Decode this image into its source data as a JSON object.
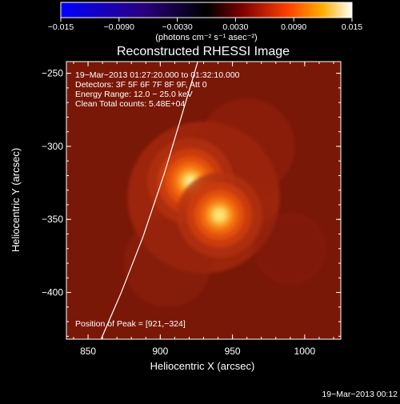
{
  "chart_data": {
    "type": "heatmap",
    "title": "Reconstructed RHESSI Image",
    "xlabel": "Heliocentric X (arcsec)",
    "ylabel": "Heliocentric Y (arcsec)",
    "xlim": [
      835,
      1025
    ],
    "ylim": [
      -432,
      -242
    ],
    "x_ticks": [
      {
        "value": 850,
        "label": "850"
      },
      {
        "value": 900,
        "label": "900"
      },
      {
        "value": 950,
        "label": "950"
      },
      {
        "value": 1000,
        "label": "1000"
      }
    ],
    "y_ticks": [
      {
        "value": -250,
        "label": "−250"
      },
      {
        "value": -300,
        "label": "−300"
      },
      {
        "value": -350,
        "label": "−350"
      },
      {
        "value": -400,
        "label": "−400"
      }
    ],
    "colorbar": {
      "min": -0.015,
      "max": 0.015,
      "ticks": [
        {
          "value": -0.015,
          "label": "−0.015"
        },
        {
          "value": -0.009,
          "label": "−0.0090"
        },
        {
          "value": -0.003,
          "label": "−0.0030"
        },
        {
          "value": 0.003,
          "label": "0.0030"
        },
        {
          "value": 0.009,
          "label": "0.0090"
        },
        {
          "value": 0.015,
          "label": "0.015"
        }
      ],
      "unit_label": "(photons cm⁻² s⁻¹ asec⁻²)"
    },
    "annotations": [
      "19−Mar−2013 01:27:20.000 to 01:32:10.000",
      "Detectors: 3F 5F 6F 7F 8F 9F, Att 0",
      "Energy Range: 12.0 − 25.0 keV",
      "Clean    Total counts: 5.48E+04"
    ],
    "peak_label": "Position of Peak = [921,−324]",
    "sources": [
      {
        "x": 921,
        "y": -324,
        "peak": 0.015,
        "sigma": 6
      },
      {
        "x": 941,
        "y": -347,
        "peak": 0.0135,
        "sigma": 6
      }
    ],
    "limb_curve": [
      {
        "x": 859,
        "y": -432
      },
      {
        "x": 873,
        "y": -400
      },
      {
        "x": 888,
        "y": -362
      },
      {
        "x": 903,
        "y": -318
      },
      {
        "x": 916,
        "y": -275
      },
      {
        "x": 926,
        "y": -242
      }
    ]
  },
  "footer": {
    "timestamp": "19−Mar−2013 00:12"
  }
}
